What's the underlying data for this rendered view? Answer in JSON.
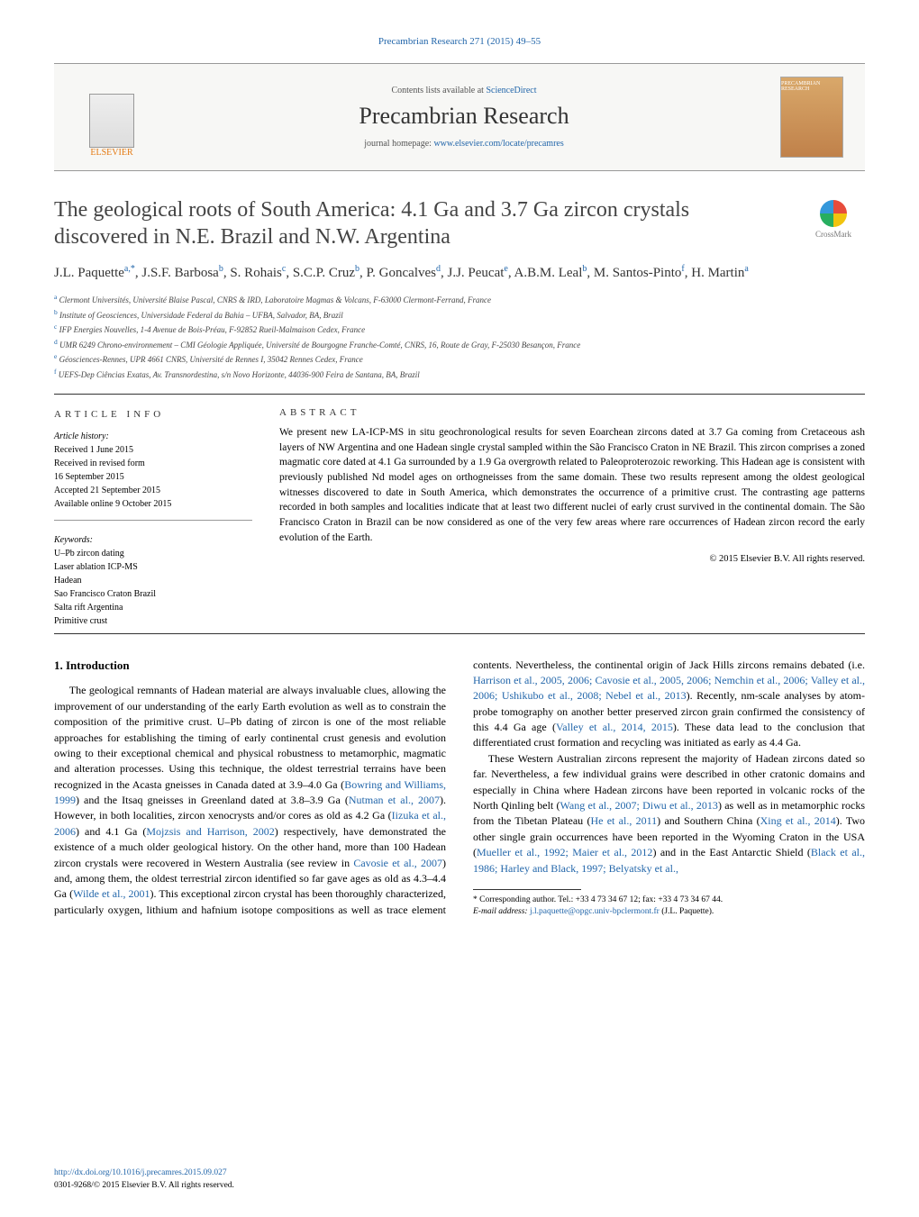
{
  "journal_ref": "Precambrian Research 271 (2015) 49–55",
  "header": {
    "contents_prefix": "Contents lists available at ",
    "contents_link": "ScienceDirect",
    "journal_name": "Precambrian Research",
    "homepage_prefix": "journal homepage: ",
    "homepage_link": "www.elsevier.com/locate/precamres",
    "elsevier_label": "ELSEVIER",
    "cover_label": "PRECAMBRIAN RESEARCH"
  },
  "title": "The geological roots of South America: 4.1 Ga and 3.7 Ga zircon crystals discovered in N.E. Brazil and N.W. Argentina",
  "crossmark": "CrossMark",
  "authors_html": "J.L. Paquette<sup>a,*</sup>, J.S.F. Barbosa<sup>b</sup>, S. Rohais<sup>c</sup>, S.C.P. Cruz<sup>b</sup>, P. Goncalves<sup>d</sup>, J.J. Peucat<sup>e</sup>, A.B.M. Leal<sup>b</sup>, M. Santos-Pinto<sup>f</sup>, H. Martin<sup>a</sup>",
  "affiliations": [
    {
      "sup": "a",
      "text": "Clermont Universités, Université Blaise Pascal, CNRS & IRD, Laboratoire Magmas & Volcans, F-63000 Clermont-Ferrand, France"
    },
    {
      "sup": "b",
      "text": "Institute of Geosciences, Universidade Federal da Bahia – UFBA, Salvador, BA, Brazil"
    },
    {
      "sup": "c",
      "text": "IFP Energies Nouvelles, 1-4 Avenue de Bois-Préau, F-92852 Rueil-Malmaison Cedex, France"
    },
    {
      "sup": "d",
      "text": "UMR 6249 Chrono-environnement – CMI Géologie Appliquée, Université de Bourgogne Franche-Comté, CNRS, 16, Route de Gray, F-25030 Besançon, France"
    },
    {
      "sup": "e",
      "text": "Géosciences-Rennes, UPR 4661 CNRS, Université de Rennes I, 35042 Rennes Cedex, France"
    },
    {
      "sup": "f",
      "text": "UEFS-Dep Ciências Exatas, Av. Transnordestina, s/n Novo Horizonte, 44036-900 Feira de Santana, BA, Brazil"
    }
  ],
  "article_info": {
    "heading": "ARTICLE INFO",
    "history_label": "Article history:",
    "history": [
      "Received 1 June 2015",
      "Received in revised form",
      "16 September 2015",
      "Accepted 21 September 2015",
      "Available online 9 October 2015"
    ],
    "keywords_label": "Keywords:",
    "keywords": [
      "U–Pb zircon dating",
      "Laser ablation ICP-MS",
      "Hadean",
      "Sao Francisco Craton Brazil",
      "Salta rift Argentina",
      "Primitive crust"
    ]
  },
  "abstract": {
    "heading": "ABSTRACT",
    "text": "We present new LA-ICP-MS in situ geochronological results for seven Eoarchean zircons dated at 3.7 Ga coming from Cretaceous ash layers of NW Argentina and one Hadean single crystal sampled within the São Francisco Craton in NE Brazil. This zircon comprises a zoned magmatic core dated at 4.1 Ga surrounded by a 1.9 Ga overgrowth related to Paleoproterozoic reworking. This Hadean age is consistent with previously published Nd model ages on orthogneisses from the same domain. These two results represent among the oldest geological witnesses discovered to date in South America, which demonstrates the occurrence of a primitive crust. The contrasting age patterns recorded in both samples and localities indicate that at least two different nuclei of early crust survived in the continental domain. The São Francisco Craton in Brazil can be now considered as one of the very few areas where rare occurrences of Hadean zircon record the early evolution of the Earth.",
    "copyright": "© 2015 Elsevier B.V. All rights reserved."
  },
  "intro": {
    "heading": "1. Introduction",
    "p1_a": "The geological remnants of Hadean material are always invaluable clues, allowing the improvement of our understanding of the early Earth evolution as well as to constrain the composition of the primitive crust. U–Pb dating of zircon is one of the most reliable approaches for establishing the timing of early continental crust genesis and evolution owing to their exceptional chemical and physical robustness to metamorphic, magmatic and alteration processes. Using this technique, the oldest terrestrial terrains have been recognized in the Acasta gneisses in Canada dated at 3.9–4.0 Ga (",
    "r1": "Bowring and Williams, 1999",
    "p1_b": ") and the Itsaq gneisses in Greenland dated at 3.8–3.9 Ga (",
    "r2": "Nutman et al., 2007",
    "p1_c": "). However, in both localities, zircon xenocrysts and/or cores as old as 4.2 Ga (",
    "r3": "Iizuka et al., 2006",
    "p1_d": ") and 4.1 Ga (",
    "r4": "Mojzsis and Harrison, 2002",
    "p1_e": ") respectively, have demonstrated the existence of a much older geological history. On the other hand, more than 100 Hadean zircon crystals were recovered in Western Australia (see review in ",
    "r5": "Cavosie et al., 2007",
    "p2_a": ") and, among them, the oldest terrestrial zircon identified so far gave ages as old as 4.3–4.4 Ga (",
    "r6": "Wilde et al., 2001",
    "p2_b": "). This exceptional zircon crystal has been thoroughly characterized, particularly oxygen, lithium and hafnium isotope compositions as well as trace element contents. Nevertheless, the continental origin of Jack Hills zircons remains debated (i.e. ",
    "r7": "Harrison et al., 2005, 2006; Cavosie et al., 2005, 2006; Nemchin et al., 2006; Valley et al., 2006; Ushikubo et al., 2008; Nebel et al., 2013",
    "p2_c": "). Recently, nm-scale analyses by atom-probe tomography on another better preserved zircon grain confirmed the consistency of this 4.4 Ga age (",
    "r8": "Valley et al., 2014, 2015",
    "p2_d": "). These data lead to the conclusion that differentiated crust formation and recycling was initiated as early as 4.4 Ga.",
    "p3_a": "These Western Australian zircons represent the majority of Hadean zircons dated so far. Nevertheless, a few individual grains were described in other cratonic domains and especially in China where Hadean zircons have been reported in volcanic rocks of the North Qinling belt (",
    "r9": "Wang et al., 2007; Diwu et al., 2013",
    "p3_b": ") as well as in metamorphic rocks from the Tibetan Plateau (",
    "r10": "He et al., 2011",
    "p3_c": ") and Southern China (",
    "r11": "Xing et al., 2014",
    "p3_d": "). Two other single grain occurrences have been reported in the Wyoming Craton in the USA (",
    "r12": "Mueller et al., 1992; Maier et al., 2012",
    "p3_e": ") and in the East Antarctic Shield (",
    "r13": "Black et al., 1986; Harley and Black, 1997; Belyatsky et al.,"
  },
  "footnote": {
    "star": "*",
    "text": " Corresponding author. Tel.: +33 4 73 34 67 12; fax: +33 4 73 34 67 44.",
    "email_label": "E-mail address: ",
    "email": "j.l.paquette@opgc.univ-bpclermont.fr",
    "email_tail": " (J.L. Paquette)."
  },
  "footer": {
    "doi": "http://dx.doi.org/10.1016/j.precamres.2015.09.027",
    "issn_line": "0301-9268/© 2015 Elsevier B.V. All rights reserved."
  }
}
